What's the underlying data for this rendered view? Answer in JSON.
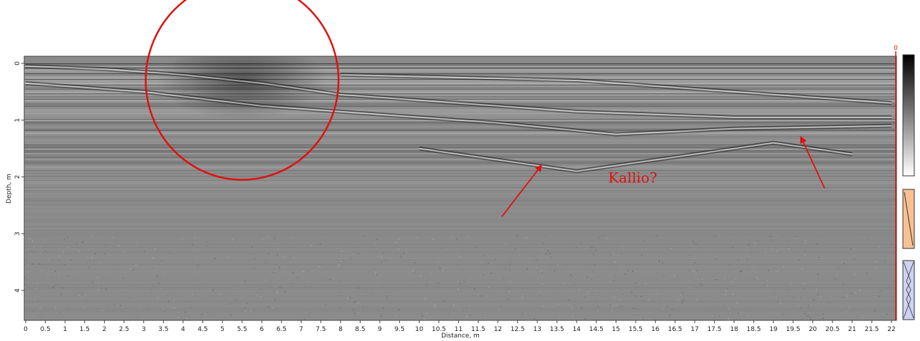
{
  "chart_data": {
    "type": "heatmap",
    "title": "",
    "xlabel": "Distance, m",
    "ylabel": "Depth, m",
    "xlim": [
      0,
      22
    ],
    "ylim": [
      0,
      4.5
    ],
    "y_inverted": true,
    "x_ticks": [
      "0",
      "0.5",
      "1",
      "1.5",
      "2",
      "2.5",
      "3",
      "3.5",
      "4",
      "4.5",
      "5",
      "5.5",
      "6",
      "6.5",
      "7",
      "7.5",
      "8",
      "8.5",
      "9",
      "9.5",
      "10",
      "10.5",
      "11",
      "11.5",
      "12",
      "12.5",
      "13",
      "13.5",
      "14",
      "14.5",
      "15",
      "15.5",
      "16",
      "16.5",
      "17",
      "17.5",
      "18",
      "18.5",
      "19",
      "19.5",
      "20",
      "20.5",
      "21",
      "21.5",
      "22"
    ],
    "y_ticks": [
      "0",
      "1",
      "2",
      "3",
      "4"
    ],
    "colormap": [
      "#000000",
      "#ffffff"
    ],
    "position_marker": "0",
    "reflectors": [
      {
        "x": [
          0,
          2,
          4,
          6,
          8,
          10,
          14,
          18,
          22
        ],
        "y": [
          0.05,
          0.1,
          0.2,
          0.35,
          0.55,
          0.65,
          0.85,
          0.95,
          0.95
        ]
      },
      {
        "x": [
          0,
          3,
          6,
          9,
          12,
          15,
          18,
          22
        ],
        "y": [
          0.35,
          0.5,
          0.75,
          0.9,
          1.05,
          1.25,
          1.15,
          1.1
        ]
      },
      {
        "x": [
          8,
          11,
          14,
          17,
          20,
          22
        ],
        "y": [
          0.2,
          0.25,
          0.3,
          0.45,
          0.6,
          0.7
        ]
      },
      {
        "x": [
          10,
          12,
          14,
          17,
          19,
          21
        ],
        "y": [
          1.5,
          1.7,
          1.9,
          1.6,
          1.4,
          1.6
        ]
      }
    ],
    "anomaly_center": [
      5.5,
      0.3
    ],
    "annotations": [
      {
        "text": "Kallio?",
        "x": 14.8,
        "y": 2.1
      }
    ],
    "arrows": [
      {
        "from": [
          12.1,
          2.7
        ],
        "to": [
          13.1,
          1.8
        ]
      },
      {
        "from": [
          20.3,
          2.2
        ],
        "to": [
          19.7,
          1.3
        ]
      }
    ],
    "circle": {
      "cx": 5.5,
      "cy": 0.3,
      "rx": 2.45,
      "ry": 1.75
    }
  },
  "colors": {
    "background": "#8a8a8a",
    "annotation": "#e01010",
    "colorbar_orange": "#f7c193",
    "colorbar_blue": "#cfd2f2"
  }
}
